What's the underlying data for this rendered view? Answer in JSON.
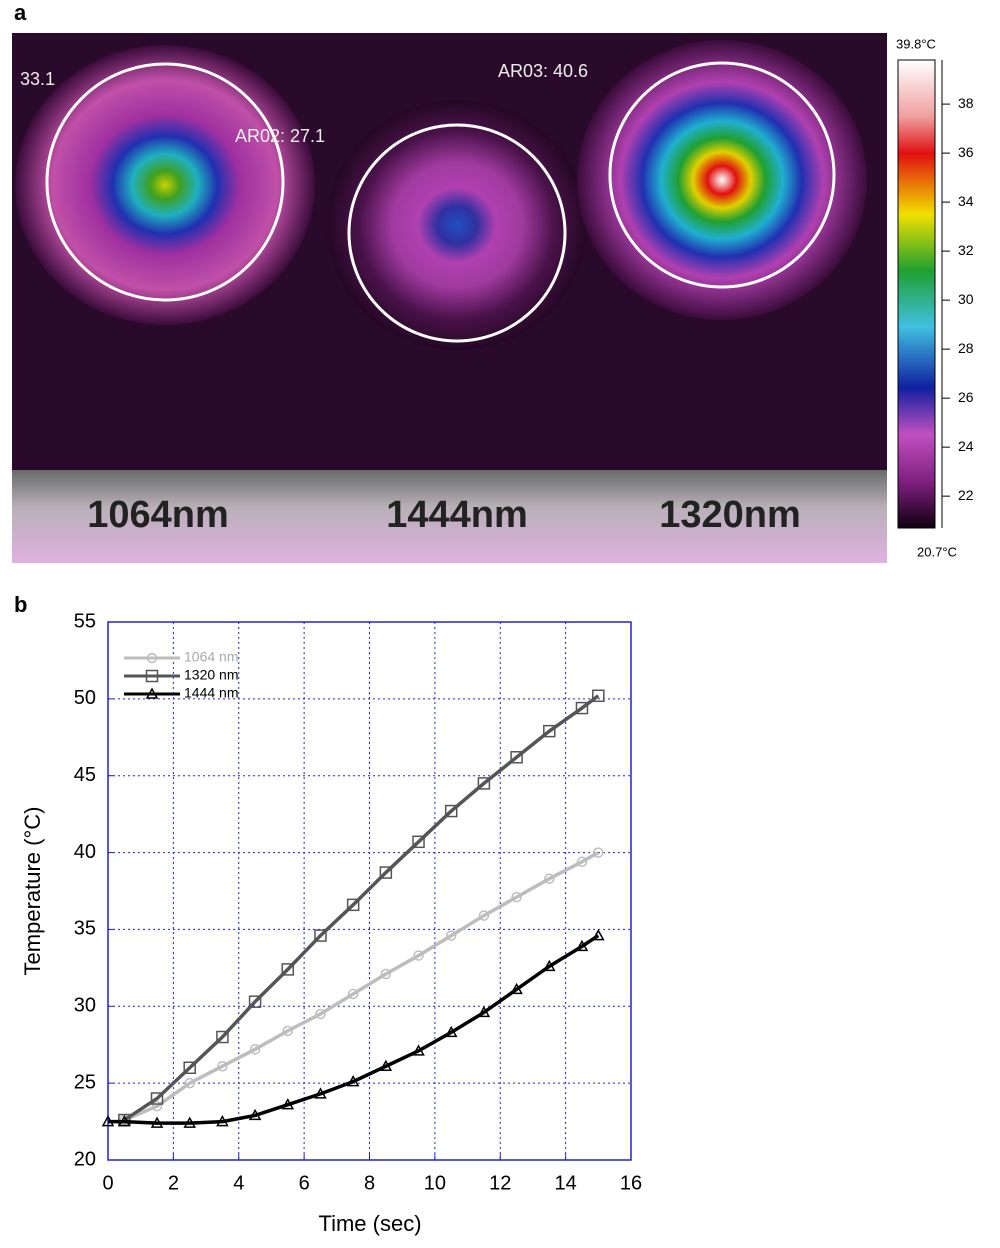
{
  "panel_a": {
    "label": "a",
    "readouts": [
      "33.1",
      "AR02: 27.1",
      "AR03: 40.6"
    ],
    "wavelengths": [
      "1064nm",
      "1444nm",
      "1320nm"
    ],
    "colorbar": {
      "max_label": "39.8°C",
      "min_label": "20.7°C",
      "lim": [
        20.7,
        39.8
      ],
      "ticks": [
        22,
        24,
        26,
        28,
        30,
        32,
        34,
        36,
        38
      ]
    }
  },
  "chart_data": {
    "type": "line",
    "panel_label": "b",
    "xlabel": "Time (sec)",
    "ylabel": "Temperature (°C)",
    "x": [
      0,
      0.5,
      1.5,
      2.5,
      3.5,
      4.5,
      5.5,
      6.5,
      7.5,
      8.5,
      9.5,
      10.5,
      11.5,
      12.5,
      13.5,
      14.5,
      15
    ],
    "series": [
      {
        "name": "1064 nm",
        "color": "#bdbdbd",
        "marker": "circle",
        "values": [
          null,
          22.6,
          23.5,
          25,
          26.1,
          27.2,
          28.4,
          29.5,
          30.8,
          32.1,
          33.3,
          34.6,
          35.9,
          37.1,
          38.3,
          39.4,
          40
        ]
      },
      {
        "name": "1320 nm",
        "color": "#555555",
        "marker": "square",
        "values": [
          null,
          22.6,
          24,
          26,
          28,
          30.3,
          32.4,
          34.6,
          36.6,
          38.7,
          40.7,
          42.7,
          44.5,
          46.2,
          47.9,
          49.4,
          50.2
        ]
      },
      {
        "name": "1444 nm",
        "color": "#000000",
        "marker": "triangle",
        "values": [
          22.5,
          22.5,
          22.4,
          22.4,
          22.5,
          22.9,
          23.6,
          24.3,
          25.1,
          26.1,
          27.1,
          28.3,
          29.6,
          31.1,
          32.6,
          33.9,
          34.6
        ]
      }
    ],
    "xlim": [
      0,
      16
    ],
    "xticks": [
      0,
      2,
      4,
      6,
      8,
      10,
      12,
      14,
      16
    ],
    "ylim": [
      20,
      55
    ],
    "yticks": [
      20,
      25,
      30,
      35,
      40,
      45,
      50,
      55
    ],
    "grid": true,
    "legend": "upper-left"
  }
}
